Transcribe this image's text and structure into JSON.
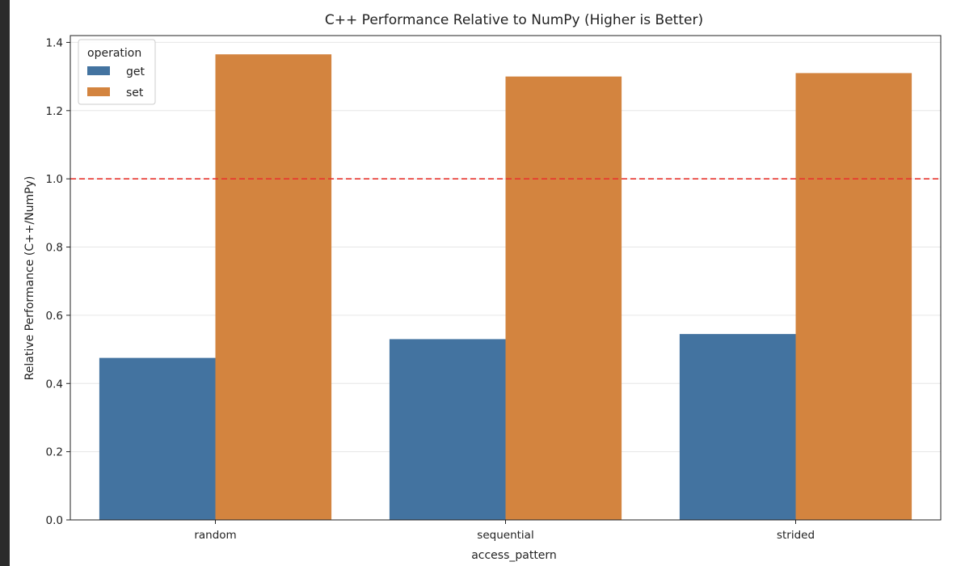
{
  "chart_data": {
    "type": "bar",
    "title": "C++ Performance Relative to NumPy (Higher is Better)",
    "xlabel": "access_pattern",
    "ylabel": "Relative Performance (C++/NumPy)",
    "categories": [
      "random",
      "sequential",
      "strided"
    ],
    "series": [
      {
        "name": "get",
        "values": [
          0.475,
          0.53,
          0.545
        ]
      },
      {
        "name": "set",
        "values": [
          1.365,
          1.3,
          1.31
        ]
      }
    ],
    "ylim": [
      0,
      1.42
    ],
    "yticks": [
      0.0,
      0.2,
      0.4,
      0.6,
      0.8,
      1.0,
      1.2,
      1.4
    ],
    "ytick_labels": [
      "0.0",
      "0.2",
      "0.4",
      "0.6",
      "0.8",
      "1.0",
      "1.2",
      "1.4"
    ],
    "reference_line": {
      "y": 1.0,
      "color": "#e8352f",
      "style": "dashed"
    },
    "legend": {
      "title": "operation",
      "placement": "top-left"
    },
    "grid": {
      "y": true,
      "x": false
    },
    "colors": {
      "get": "#4373a0",
      "set": "#d3843f"
    }
  }
}
